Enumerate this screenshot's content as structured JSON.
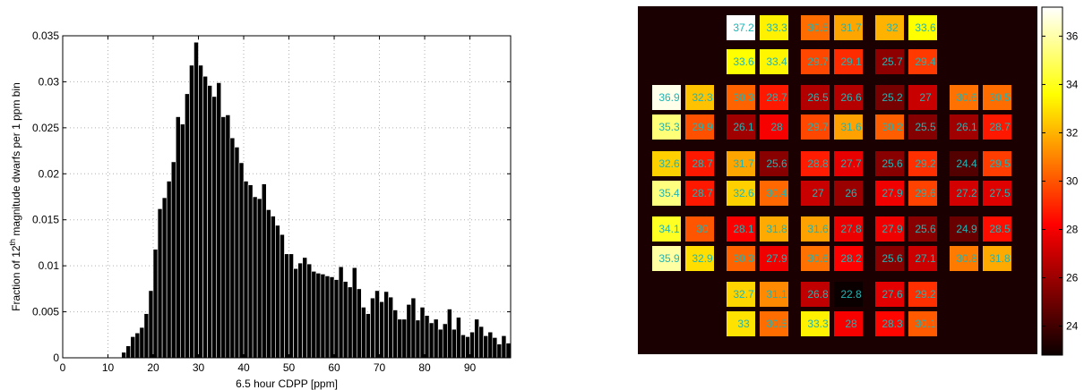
{
  "chart_data": [
    {
      "type": "bar",
      "title": "",
      "xlabel": "6.5 hour CDPP [ppm]",
      "ylabel": "Fraction of 12th magnitude dwarfs per 1 ppm bin",
      "ylabel_parts": {
        "before": "Fraction of 12",
        "sup": "th",
        "after": " magnitude dwarfs per 1 ppm bin"
      },
      "xlim": [
        0,
        99
      ],
      "ylim": [
        0,
        0.035
      ],
      "xticks": [
        0,
        10,
        20,
        30,
        40,
        50,
        60,
        70,
        80,
        90
      ],
      "yticks": [
        0,
        0.005,
        0.01,
        0.015,
        0.02,
        0.025,
        0.03,
        0.035
      ],
      "ytick_labels": [
        "0",
        "0.005",
        "0.01",
        "0.015",
        "0.02",
        "0.025",
        "0.03",
        "0.035"
      ],
      "grid": true,
      "bar_color": "#000000",
      "bin_start": 13,
      "bin_width": 1,
      "values": [
        0.0006,
        0.0013,
        0.0023,
        0.0027,
        0.0033,
        0.0048,
        0.0073,
        0.0118,
        0.0162,
        0.0174,
        0.0192,
        0.0213,
        0.0262,
        0.0254,
        0.0287,
        0.0318,
        0.0343,
        0.0318,
        0.0306,
        0.0296,
        0.0284,
        0.0299,
        0.0262,
        0.0264,
        0.0239,
        0.0229,
        0.0212,
        0.0192,
        0.0188,
        0.0175,
        0.0173,
        0.0189,
        0.0161,
        0.0154,
        0.0144,
        0.0134,
        0.0113,
        0.0113,
        0.0097,
        0.0103,
        0.0109,
        0.0102,
        0.0094,
        0.0092,
        0.0091,
        0.0089,
        0.0088,
        0.0085,
        0.0099,
        0.0083,
        0.0077,
        0.0098,
        0.0075,
        0.0055,
        0.0048,
        0.0065,
        0.0073,
        0.0061,
        0.0072,
        0.0066,
        0.0052,
        0.0042,
        0.0042,
        0.0058,
        0.0065,
        0.0041,
        0.0055,
        0.0046,
        0.0038,
        0.0042,
        0.0031,
        0.0037,
        0.0053,
        0.0031,
        0.0044,
        0.0025,
        0.0023,
        0.0028,
        0.0042,
        0.0034,
        0.0024,
        0.0028,
        0.0022,
        0.0015,
        0.0024,
        0.0016,
        0.0023,
        0.0016
      ]
    },
    {
      "type": "heatmap",
      "title": "",
      "colormap": "hot",
      "colorbar_range": [
        22.8,
        37.2
      ],
      "colorbar_ticks": [
        24,
        26,
        28,
        30,
        32,
        34,
        36
      ],
      "background": "#1a0000",
      "label_color": "#1fb5b5",
      "cells": [
        {
          "row": 0,
          "col": 2,
          "value": 37.2,
          "label": "37.2"
        },
        {
          "row": 0,
          "col": 3,
          "value": 33.3,
          "label": "33.3"
        },
        {
          "row": 0,
          "col": 4,
          "value": 30.5,
          "label": "30.5"
        },
        {
          "row": 0,
          "col": 5,
          "value": 31.7,
          "label": "31.7"
        },
        {
          "row": 0,
          "col": 6,
          "value": 32,
          "label": "32"
        },
        {
          "row": 0,
          "col": 7,
          "value": 33.6,
          "label": "33.6"
        },
        {
          "row": 1,
          "col": 2,
          "value": 33.6,
          "label": "33.6"
        },
        {
          "row": 1,
          "col": 3,
          "value": 33.4,
          "label": "33.4"
        },
        {
          "row": 1,
          "col": 4,
          "value": 29.7,
          "label": "29.7"
        },
        {
          "row": 1,
          "col": 5,
          "value": 29.1,
          "label": "29.1"
        },
        {
          "row": 1,
          "col": 6,
          "value": 25.7,
          "label": "25.7"
        },
        {
          "row": 1,
          "col": 7,
          "value": 29.4,
          "label": "29.4"
        },
        {
          "row": 2,
          "col": 0,
          "value": 36.9,
          "label": "36.9"
        },
        {
          "row": 2,
          "col": 1,
          "value": 32.3,
          "label": "32.3"
        },
        {
          "row": 2,
          "col": 2,
          "value": 30.3,
          "label": "30.3"
        },
        {
          "row": 2,
          "col": 3,
          "value": 28.7,
          "label": "28.7"
        },
        {
          "row": 2,
          "col": 4,
          "value": 26.5,
          "label": "26.5"
        },
        {
          "row": 2,
          "col": 5,
          "value": 26.6,
          "label": "26.6"
        },
        {
          "row": 2,
          "col": 6,
          "value": 25.2,
          "label": "25.2"
        },
        {
          "row": 2,
          "col": 7,
          "value": 27,
          "label": "27"
        },
        {
          "row": 2,
          "col": 8,
          "value": 30.6,
          "label": "30.6"
        },
        {
          "row": 2,
          "col": 9,
          "value": 30.5,
          "label": "30.5"
        },
        {
          "row": 3,
          "col": 0,
          "value": 35.3,
          "label": "35.3"
        },
        {
          "row": 3,
          "col": 1,
          "value": 29.9,
          "label": "29.9"
        },
        {
          "row": 3,
          "col": 2,
          "value": 26.1,
          "label": "26.1"
        },
        {
          "row": 3,
          "col": 3,
          "value": 28,
          "label": "28"
        },
        {
          "row": 3,
          "col": 4,
          "value": 29.7,
          "label": "29.7"
        },
        {
          "row": 3,
          "col": 5,
          "value": 31.6,
          "label": "31.6"
        },
        {
          "row": 3,
          "col": 6,
          "value": 30.2,
          "label": "30.2"
        },
        {
          "row": 3,
          "col": 7,
          "value": 25.5,
          "label": "25.5"
        },
        {
          "row": 3,
          "col": 8,
          "value": 26.1,
          "label": "26.1"
        },
        {
          "row": 3,
          "col": 9,
          "value": 28.7,
          "label": "28.7"
        },
        {
          "row": 4,
          "col": 0,
          "value": 32.6,
          "label": "32.6"
        },
        {
          "row": 4,
          "col": 1,
          "value": 28.7,
          "label": "28.7"
        },
        {
          "row": 4,
          "col": 2,
          "value": 31.7,
          "label": "31.7"
        },
        {
          "row": 4,
          "col": 3,
          "value": 25.6,
          "label": "25.6"
        },
        {
          "row": 4,
          "col": 4,
          "value": 28.8,
          "label": "28.8"
        },
        {
          "row": 4,
          "col": 5,
          "value": 27.7,
          "label": "27.7"
        },
        {
          "row": 4,
          "col": 6,
          "value": 25.6,
          "label": "25.6"
        },
        {
          "row": 4,
          "col": 7,
          "value": 29.2,
          "label": "29.2"
        },
        {
          "row": 4,
          "col": 8,
          "value": 24.4,
          "label": "24.4"
        },
        {
          "row": 4,
          "col": 9,
          "value": 29.5,
          "label": "29.5"
        },
        {
          "row": 5,
          "col": 0,
          "value": 35.4,
          "label": "35.4"
        },
        {
          "row": 5,
          "col": 1,
          "value": 28.7,
          "label": "28.7"
        },
        {
          "row": 5,
          "col": 2,
          "value": 32.6,
          "label": "32.6"
        },
        {
          "row": 5,
          "col": 3,
          "value": 30.4,
          "label": "30.4"
        },
        {
          "row": 5,
          "col": 4,
          "value": 27,
          "label": "27"
        },
        {
          "row": 5,
          "col": 5,
          "value": 26,
          "label": "26"
        },
        {
          "row": 5,
          "col": 6,
          "value": 27.9,
          "label": "27.9"
        },
        {
          "row": 5,
          "col": 7,
          "value": 29.6,
          "label": "29.6"
        },
        {
          "row": 5,
          "col": 8,
          "value": 27.2,
          "label": "27.2"
        },
        {
          "row": 5,
          "col": 9,
          "value": 27.5,
          "label": "27.5"
        },
        {
          "row": 6,
          "col": 0,
          "value": 34.1,
          "label": "34.1"
        },
        {
          "row": 6,
          "col": 1,
          "value": 30,
          "label": "30"
        },
        {
          "row": 6,
          "col": 2,
          "value": 28.1,
          "label": "28.1"
        },
        {
          "row": 6,
          "col": 3,
          "value": 31.8,
          "label": "31.8"
        },
        {
          "row": 6,
          "col": 4,
          "value": 31.6,
          "label": "31.6"
        },
        {
          "row": 6,
          "col": 5,
          "value": 27.8,
          "label": "27.8"
        },
        {
          "row": 6,
          "col": 6,
          "value": 27.9,
          "label": "27.9"
        },
        {
          "row": 6,
          "col": 7,
          "value": 25.6,
          "label": "25.6"
        },
        {
          "row": 6,
          "col": 8,
          "value": 24.9,
          "label": "24.9"
        },
        {
          "row": 6,
          "col": 9,
          "value": 28.5,
          "label": "28.5"
        },
        {
          "row": 7,
          "col": 0,
          "value": 35.9,
          "label": "35.9"
        },
        {
          "row": 7,
          "col": 1,
          "value": 32.9,
          "label": "32.9"
        },
        {
          "row": 7,
          "col": 2,
          "value": 30.3,
          "label": "30.3"
        },
        {
          "row": 7,
          "col": 3,
          "value": 27.9,
          "label": "27.9"
        },
        {
          "row": 7,
          "col": 4,
          "value": 30.6,
          "label": "30.6"
        },
        {
          "row": 7,
          "col": 5,
          "value": 28.2,
          "label": "28.2"
        },
        {
          "row": 7,
          "col": 6,
          "value": 25.6,
          "label": "25.6"
        },
        {
          "row": 7,
          "col": 7,
          "value": 27.1,
          "label": "27.1"
        },
        {
          "row": 7,
          "col": 8,
          "value": 30.8,
          "label": "30.8"
        },
        {
          "row": 7,
          "col": 9,
          "value": 31.8,
          "label": "31.8"
        },
        {
          "row": 8,
          "col": 2,
          "value": 32.7,
          "label": "32.7"
        },
        {
          "row": 8,
          "col": 3,
          "value": 31.1,
          "label": "31.1"
        },
        {
          "row": 8,
          "col": 4,
          "value": 26.8,
          "label": "26.8"
        },
        {
          "row": 8,
          "col": 5,
          "value": 22.8,
          "label": "22.8"
        },
        {
          "row": 8,
          "col": 6,
          "value": 27.6,
          "label": "27.6"
        },
        {
          "row": 8,
          "col": 7,
          "value": 29.2,
          "label": "29.2"
        },
        {
          "row": 9,
          "col": 2,
          "value": 33,
          "label": "33"
        },
        {
          "row": 9,
          "col": 3,
          "value": 30.5,
          "label": "30.5"
        },
        {
          "row": 9,
          "col": 4,
          "value": 33.3,
          "label": "33.3"
        },
        {
          "row": 9,
          "col": 5,
          "value": 28,
          "label": "28"
        },
        {
          "row": 9,
          "col": 6,
          "value": 28.3,
          "label": "28.3"
        },
        {
          "row": 9,
          "col": 7,
          "value": 30.1,
          "label": "30.1"
        }
      ]
    }
  ]
}
